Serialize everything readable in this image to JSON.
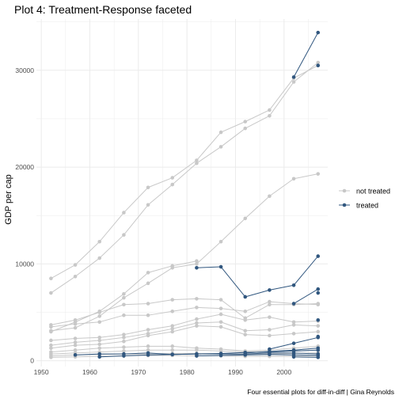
{
  "chart_data": {
    "type": "line",
    "title": "Plot 4: Treatment-Response faceted",
    "xlabel": "",
    "ylabel": "GDP per cap",
    "caption": "Four essential plots for diff-in-diff | Gina Reynolds",
    "xlim": [
      1949,
      2009
    ],
    "ylim": [
      -600,
      35300
    ],
    "x_ticks": [
      1950,
      1960,
      1970,
      1980,
      1990,
      2000
    ],
    "y_ticks": [
      0,
      10000,
      20000,
      30000
    ],
    "y_tick_labels": [
      "0",
      "10000",
      "20000",
      "30000"
    ],
    "grid": true,
    "legend_position": "right",
    "legend": [
      {
        "name": "not treated",
        "color": "#c8c8c8"
      },
      {
        "name": "treated",
        "color": "#31577f"
      }
    ],
    "colors": {
      "not_treated": "#c8c8c8",
      "treated": "#31577f",
      "grid": "#ebebeb"
    },
    "series": [
      {
        "group": "not treated",
        "x": [
          1952,
          1957,
          1962,
          1967,
          1972,
          1977,
          1982,
          1987,
          1992,
          1997,
          2002,
          2007
        ],
        "values": [
          8500,
          9900,
          12300,
          15300,
          17900,
          18900,
          20700,
          23600,
          24700,
          25900,
          29200,
          30500
        ]
      },
      {
        "group": "not treated",
        "x": [
          1952,
          1957,
          1962,
          1967,
          1972,
          1977,
          1982,
          1987,
          1992,
          1997,
          2002,
          2007
        ],
        "values": [
          7000,
          8700,
          10600,
          13000,
          16100,
          18200,
          20400,
          22100,
          24000,
          25300,
          28800,
          30800
        ]
      },
      {
        "group": "not treated",
        "x": [
          1952,
          1957,
          1962,
          1967,
          1972,
          1977,
          1982,
          1987,
          1992,
          1997,
          2002,
          2007
        ],
        "values": [
          3100,
          3400,
          4600,
          6500,
          8000,
          9600,
          10000,
          12300,
          14700,
          17000,
          18800,
          19300
        ]
      },
      {
        "group": "not treated",
        "x": [
          1952,
          1957,
          1962,
          1967,
          1972,
          1977,
          1982,
          1987,
          1992,
          1997,
          2002,
          2007
        ],
        "values": [
          3000,
          4000,
          5100,
          6900,
          9100,
          9800,
          10300,
          null,
          null,
          null,
          null,
          null
        ]
      },
      {
        "group": "not treated",
        "x": [
          1952,
          1957,
          1962,
          1967,
          1972,
          1977,
          1982,
          1987,
          1992,
          1997,
          2002,
          2007
        ],
        "values": [
          3700,
          4200,
          5000,
          5800,
          5900,
          6300,
          6400,
          6300,
          4400,
          5800,
          5800,
          5900
        ]
      },
      {
        "group": "not treated",
        "x": [
          1952,
          1957,
          1962,
          1967,
          1972,
          1977,
          1982,
          1987,
          1992,
          1997,
          2002,
          2007
        ],
        "values": [
          3500,
          3800,
          4000,
          4700,
          4700,
          5100,
          5500,
          5400,
          5100,
          6100,
          5900,
          5800
        ]
      },
      {
        "group": "not treated",
        "x": [
          1952,
          1957,
          1962,
          1967,
          1972,
          1977,
          1982,
          1987,
          1992,
          1997,
          2002,
          2007
        ],
        "values": [
          2100,
          2300,
          2400,
          2700,
          3200,
          3600,
          4300,
          4800,
          4200,
          4500,
          4000,
          4100
        ]
      },
      {
        "group": "not treated",
        "x": [
          1952,
          1957,
          1962,
          1967,
          1972,
          1977,
          1982,
          1987,
          1992,
          1997,
          2002,
          2007
        ],
        "values": [
          1600,
          1900,
          2100,
          2400,
          2800,
          3300,
          3900,
          4000,
          3100,
          3200,
          3700,
          3600
        ]
      },
      {
        "group": "not treated",
        "x": [
          1952,
          1957,
          1962,
          1967,
          1972,
          1977,
          1982,
          1987,
          1992,
          1997,
          2002,
          2007
        ],
        "values": [
          1300,
          1600,
          1700,
          2000,
          2600,
          3000,
          3600,
          3500,
          2700,
          2600,
          2800,
          3000
        ]
      },
      {
        "group": "not treated",
        "x": [
          1952,
          1957,
          1962,
          1967,
          1972,
          1977,
          1982,
          1987,
          1992,
          1997,
          2002,
          2007
        ],
        "values": [
          900,
          1100,
          1300,
          1400,
          1500,
          1500,
          1300,
          1200,
          1000,
          1100,
          1300,
          1500
        ]
      },
      {
        "group": "not treated",
        "x": [
          1952,
          1957,
          1962,
          1967,
          1972,
          1977,
          1982,
          1987,
          1992,
          1997,
          2002,
          2007
        ],
        "values": [
          700,
          800,
          900,
          1000,
          1100,
          1100,
          1100,
          1000,
          900,
          950,
          1000,
          1100
        ]
      },
      {
        "group": "not treated",
        "x": [
          1952,
          1957,
          1962,
          1967,
          1972,
          1977,
          1982,
          1987,
          1992,
          1997,
          2002,
          2007
        ],
        "values": [
          500,
          600,
          650,
          700,
          700,
          750,
          750,
          700,
          650,
          700,
          750,
          800
        ]
      },
      {
        "group": "not treated",
        "x": [
          1952,
          1957,
          1962,
          1967,
          1972,
          1977,
          1982,
          1987,
          1992,
          1997,
          2002,
          2007
        ],
        "values": [
          350,
          400,
          450,
          500,
          550,
          550,
          500,
          500,
          450,
          450,
          450,
          500
        ]
      },
      {
        "group": "treated",
        "x": [
          1952,
          1957,
          1962,
          1967,
          1972,
          1977,
          1982,
          1987,
          1992,
          1997,
          2002,
          2007
        ],
        "values": [
          null,
          null,
          null,
          null,
          null,
          null,
          null,
          null,
          null,
          null,
          29300,
          33900
        ]
      },
      {
        "group": "treated",
        "x": [
          1952,
          1957,
          1962,
          1967,
          1972,
          1977,
          1982,
          1987,
          1992,
          1997,
          2002,
          2007
        ],
        "values": [
          null,
          null,
          null,
          null,
          null,
          null,
          null,
          null,
          null,
          null,
          null,
          30500
        ]
      },
      {
        "group": "treated",
        "x": [
          1952,
          1957,
          1962,
          1967,
          1972,
          1977,
          1982,
          1987,
          1992,
          1997,
          2002,
          2007
        ],
        "values": [
          null,
          null,
          null,
          null,
          null,
          null,
          9600,
          9700,
          6600,
          7300,
          7800,
          10800
        ]
      },
      {
        "group": "treated",
        "x": [
          1952,
          1957,
          1962,
          1967,
          1972,
          1977,
          1982,
          1987,
          1992,
          1997,
          2002,
          2007
        ],
        "values": [
          null,
          null,
          null,
          null,
          null,
          null,
          null,
          null,
          null,
          null,
          5900,
          7400
        ]
      },
      {
        "group": "treated",
        "x": [
          1952,
          1957,
          1962,
          1967,
          1972,
          1977,
          1982,
          1987,
          1992,
          1997,
          2002,
          2007
        ],
        "values": [
          null,
          null,
          null,
          null,
          null,
          null,
          null,
          null,
          null,
          null,
          null,
          7000
        ]
      },
      {
        "group": "treated",
        "x": [
          1952,
          1957,
          1962,
          1967,
          1972,
          1977,
          1982,
          1987,
          1992,
          1997,
          2002,
          2007
        ],
        "values": [
          null,
          null,
          null,
          null,
          null,
          null,
          null,
          null,
          null,
          null,
          null,
          4200
        ]
      },
      {
        "group": "treated",
        "x": [
          1952,
          1957,
          1962,
          1967,
          1972,
          1977,
          1982,
          1987,
          1992,
          1997,
          2002,
          2007
        ],
        "values": [
          null,
          null,
          null,
          null,
          null,
          null,
          null,
          null,
          null,
          1200,
          1800,
          2400
        ]
      },
      {
        "group": "treated",
        "x": [
          1952,
          1957,
          1962,
          1967,
          1972,
          1977,
          1982,
          1987,
          1992,
          1997,
          2002,
          2007
        ],
        "values": [
          null,
          null,
          null,
          null,
          null,
          null,
          null,
          null,
          800,
          950,
          1100,
          1300
        ]
      },
      {
        "group": "treated",
        "x": [
          1952,
          1957,
          1962,
          1967,
          1972,
          1977,
          1982,
          1987,
          1992,
          1997,
          2002,
          2007
        ],
        "values": [
          null,
          null,
          400,
          500,
          600,
          650,
          700,
          750,
          850,
          900,
          1000,
          1100
        ]
      },
      {
        "group": "treated",
        "x": [
          1952,
          1957,
          1962,
          1967,
          1972,
          1977,
          1982,
          1987,
          1992,
          1997,
          2002,
          2007
        ],
        "values": [
          null,
          600,
          700,
          700,
          800,
          650,
          700,
          700,
          700,
          800,
          800,
          700
        ]
      },
      {
        "group": "treated",
        "x": [
          1952,
          1957,
          1962,
          1967,
          1972,
          1977,
          1982,
          1987,
          1992,
          1997,
          2002,
          2007
        ],
        "values": [
          null,
          null,
          null,
          null,
          null,
          null,
          500,
          550,
          600,
          650,
          600,
          550
        ]
      },
      {
        "group": "treated",
        "x": [
          1952,
          1957,
          1962,
          1967,
          1972,
          1977,
          1982,
          1987,
          1992,
          1997,
          2002,
          2007
        ],
        "values": [
          null,
          null,
          null,
          null,
          null,
          null,
          null,
          null,
          null,
          null,
          400,
          350
        ]
      },
      {
        "group": "treated",
        "x": [
          1952,
          1957,
          1962,
          1967,
          1972,
          1977,
          1982,
          1987,
          1992,
          1997,
          2002,
          2007
        ],
        "values": [
          null,
          null,
          null,
          null,
          null,
          null,
          null,
          null,
          null,
          null,
          null,
          2500
        ]
      }
    ]
  }
}
